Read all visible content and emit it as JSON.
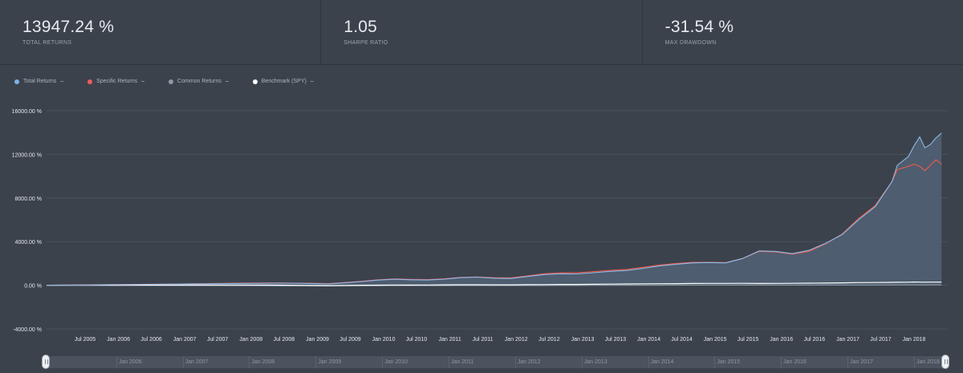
{
  "stats": [
    {
      "value": "13947.24 %",
      "label": "TOTAL RETURNS"
    },
    {
      "value": "1.05",
      "label": "SHARPE RATIO"
    },
    {
      "value": "-31.54 %",
      "label": "MAX DRAWDOWN"
    }
  ],
  "legend": [
    {
      "label": "Total Returns",
      "color": "#7cb5ec"
    },
    {
      "label": "Specific Returns",
      "color": "#f45b5b"
    },
    {
      "label": "Common Returns",
      "color": "#8d9aa6"
    },
    {
      "label": "Benchmark (SPY)",
      "color": "#ffffff"
    }
  ],
  "navigator": {
    "labels": [
      "Jan 2006",
      "Jan 2007",
      "Jan 2008",
      "Jan 2009",
      "Jan 2010",
      "Jan 2011",
      "Jan 2012",
      "Jan 2013",
      "Jan 2014",
      "Jan 2015",
      "Jan 2016",
      "Jan 2017",
      "Jan 2018"
    ]
  },
  "chart_data": {
    "type": "line",
    "title": "",
    "xlabel": "",
    "ylabel": "",
    "ylim": [
      -4000,
      16000
    ],
    "xlim": [
      "2004-12-01",
      "2018-07-01"
    ],
    "yticks": [
      -4000,
      0,
      4000,
      8000,
      12000,
      16000
    ],
    "ytick_labels": [
      "-4000.00 %",
      "0.00 %",
      "4000.00 %",
      "8000.00 %",
      "12000.00 %",
      "16000.00 %"
    ],
    "xtick_labels": [
      "Jul 2005",
      "Jan 2006",
      "Jul 2006",
      "Jan 2007",
      "Jul 2007",
      "Jan 2008",
      "Jul 2008",
      "Jan 2009",
      "Jul 2009",
      "Jan 2010",
      "Jul 2010",
      "Jan 2011",
      "Jul 2011",
      "Jan 2012",
      "Jul 2012",
      "Jan 2013",
      "Jul 2013",
      "Jan 2014",
      "Jul 2014",
      "Jan 2015",
      "Jul 2015",
      "Jan 2016",
      "Jul 2016",
      "Jan 2017",
      "Jul 2017",
      "Jan 2018"
    ],
    "grid": true,
    "legend_position": "top-left",
    "x": [
      "2004-12",
      "2005-06",
      "2005-12",
      "2006-06",
      "2006-12",
      "2007-06",
      "2007-12",
      "2008-06",
      "2008-12",
      "2009-03",
      "2009-06",
      "2009-09",
      "2009-12",
      "2010-03",
      "2010-06",
      "2010-09",
      "2010-12",
      "2011-03",
      "2011-06",
      "2011-09",
      "2011-12",
      "2012-03",
      "2012-06",
      "2012-09",
      "2012-12",
      "2013-03",
      "2013-06",
      "2013-09",
      "2013-12",
      "2014-03",
      "2014-06",
      "2014-09",
      "2014-12",
      "2015-03",
      "2015-06",
      "2015-09",
      "2015-12",
      "2016-03",
      "2016-06",
      "2016-09",
      "2016-12",
      "2017-03",
      "2017-06",
      "2017-09",
      "2017-10",
      "2017-12",
      "2018-01",
      "2018-02",
      "2018-03",
      "2018-04",
      "2018-05",
      "2018-06"
    ],
    "series": [
      {
        "name": "Total Returns",
        "values": [
          0,
          20,
          50,
          80,
          110,
          140,
          170,
          190,
          160,
          120,
          220,
          340,
          470,
          550,
          500,
          480,
          560,
          700,
          740,
          650,
          620,
          800,
          980,
          1050,
          1040,
          1150,
          1270,
          1350,
          1550,
          1780,
          1930,
          2050,
          2080,
          2050,
          2450,
          3150,
          3100,
          2900,
          3200,
          3850,
          4650,
          6000,
          7200,
          9500,
          11000,
          11800,
          12800,
          13600,
          12600,
          12900,
          13500,
          13947
        ]
      },
      {
        "name": "Specific Returns",
        "values": [
          0,
          30,
          60,
          90,
          120,
          160,
          200,
          210,
          180,
          150,
          250,
          360,
          500,
          580,
          540,
          520,
          590,
          720,
          760,
          690,
          680,
          850,
          1050,
          1150,
          1140,
          1240,
          1370,
          1450,
          1650,
          1850,
          2000,
          2100,
          2100,
          2080,
          2450,
          3100,
          3050,
          2850,
          3100,
          3800,
          4700,
          6100,
          7300,
          9500,
          10600,
          10900,
          11100,
          10900,
          10500,
          11000,
          11500,
          11100
        ]
      },
      {
        "name": "Common Returns",
        "values": [
          0,
          -10,
          -20,
          -30,
          -35,
          -40,
          -45,
          -50,
          -55,
          -55,
          -50,
          -45,
          -45,
          -40,
          -40,
          -35,
          -35,
          -30,
          -30,
          -25,
          -25,
          -20,
          -20,
          -15,
          -15,
          -10,
          -10,
          -5,
          0,
          0,
          5,
          5,
          10,
          10,
          15,
          15,
          15,
          10,
          15,
          20,
          20,
          25,
          25,
          30,
          30,
          30,
          30,
          25,
          25,
          30,
          30,
          30
        ]
      },
      {
        "name": "Benchmark (SPY)",
        "values": [
          0,
          5,
          10,
          15,
          20,
          25,
          20,
          10,
          -20,
          -35,
          -15,
          0,
          10,
          20,
          15,
          25,
          35,
          45,
          45,
          35,
          40,
          55,
          60,
          70,
          75,
          90,
          100,
          115,
          130,
          140,
          150,
          160,
          170,
          170,
          175,
          165,
          170,
          175,
          190,
          200,
          220,
          240,
          250,
          265,
          270,
          280,
          295,
          285,
          280,
          285,
          290,
          290
        ]
      }
    ]
  }
}
